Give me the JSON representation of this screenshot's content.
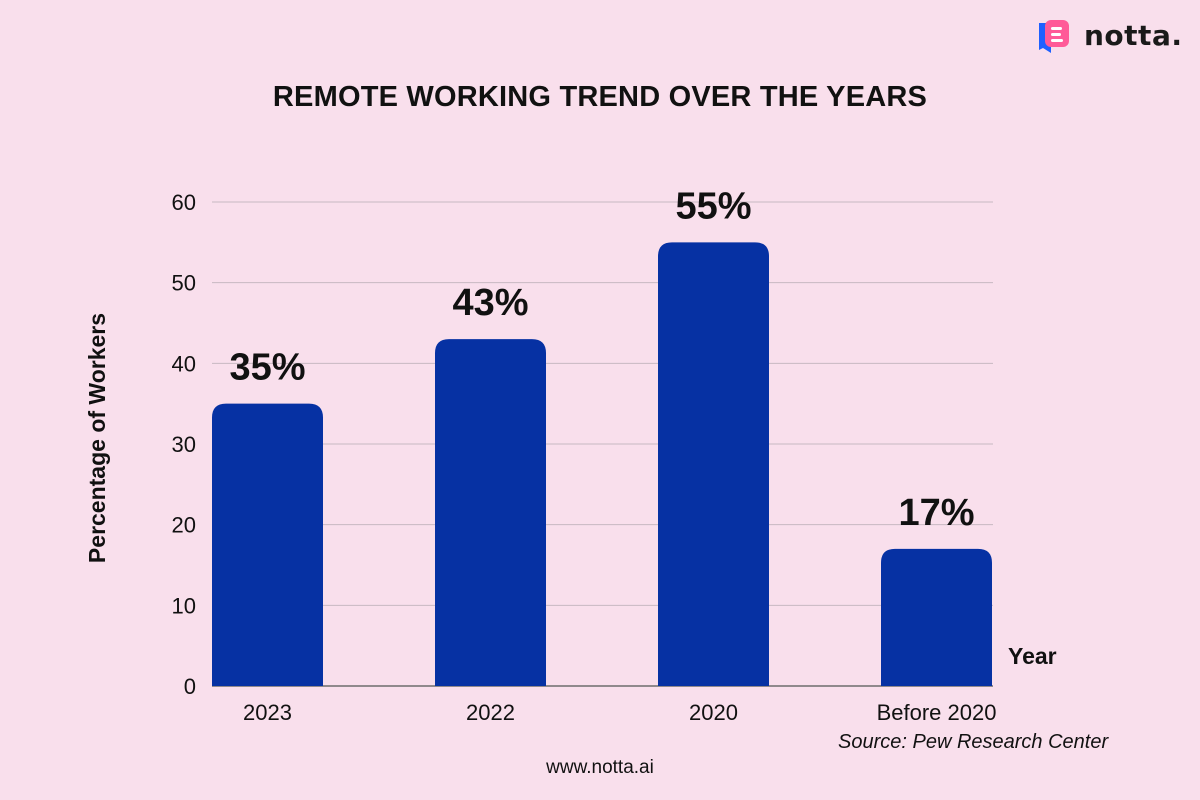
{
  "brand": {
    "name": "notta.",
    "colors": {
      "pink": "#ff5a98",
      "blue": "#1f60ff",
      "text": "#1a1a1a"
    }
  },
  "theme": {
    "background": "#f9dfec",
    "bar_color": "#0631a3",
    "grid_color": "#c8b8c2",
    "text_color": "#111111"
  },
  "chart_data": {
    "type": "bar",
    "title": "REMOTE WORKING TREND OVER THE YEARS",
    "xlabel": "Year",
    "ylabel": "Percentage of Workers",
    "categories": [
      "2023",
      "2022",
      "2020",
      "Before 2020"
    ],
    "values": [
      35,
      43,
      55,
      17
    ],
    "data_labels": [
      "35%",
      "43%",
      "55%",
      "17%"
    ],
    "ylim": [
      0,
      60
    ],
    "yticks": [
      0,
      10,
      20,
      30,
      40,
      50,
      60
    ],
    "grid": true
  },
  "footer": {
    "source": "Source: Pew Research Center",
    "url": "www.notta.ai"
  }
}
